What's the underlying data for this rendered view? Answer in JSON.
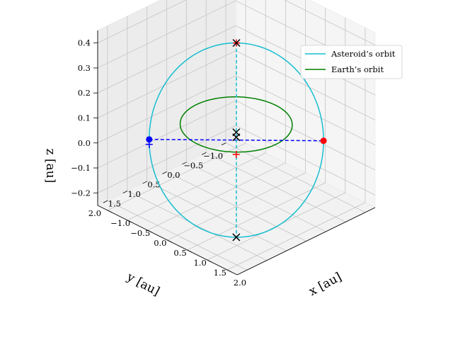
{
  "chart_data": {
    "type": "line3d",
    "xlabel": "x [au]",
    "ylabel": "y [au]",
    "zlabel": "z [au]",
    "xlim": [
      -1.25,
      2.25
    ],
    "ylim": [
      -1.25,
      2.25
    ],
    "zlim": [
      -0.25,
      0.45
    ],
    "x_ticks": [
      "−1.0",
      "−0.5",
      "0.0",
      "0.5",
      "1.0",
      "1.5",
      "2.0"
    ],
    "y_ticks": [
      "−1.0",
      "−0.5",
      "0.0",
      "0.5",
      "1.0",
      "1.5",
      "2.0"
    ],
    "z_ticks": [
      "−0.2",
      "−0.1",
      "0.0",
      "0.1",
      "0.2",
      "0.3",
      "0.4"
    ],
    "x_tick_values": [
      -1.0,
      -0.5,
      0.0,
      0.5,
      1.0,
      1.5,
      2.0
    ],
    "y_tick_values": [
      -1.0,
      -0.5,
      0.0,
      0.5,
      1.0,
      1.5,
      2.0
    ],
    "z_tick_values": [
      -0.2,
      -0.1,
      0.0,
      0.1,
      0.2,
      0.3,
      0.4
    ],
    "grid": true,
    "legend_position": "top-right",
    "series": [
      {
        "name": "Asteroid’s orbit",
        "color": "#17becf",
        "orbit": {
          "center": [
            0.4,
            0.4,
            0.0
          ],
          "axis_u": [
            1.1,
            -1.1,
            0.0
          ],
          "axis_v": [
            0.2,
            0.2,
            0.42
          ]
        }
      },
      {
        "name": "Earth’s orbit",
        "color": "#008000",
        "orbit": {
          "center": [
            0.0,
            0.0,
            0.0
          ],
          "radius": 1.0
        }
      }
    ],
    "markers": [
      {
        "type": "point",
        "color": "#0000ff",
        "position": [
          -0.7,
          1.5,
          0.0
        ]
      },
      {
        "type": "point",
        "color": "#ff0000",
        "position": [
          1.5,
          -0.7,
          0.0
        ]
      },
      {
        "type": "plus",
        "color": "#0000ff",
        "position": [
          -0.7,
          1.5,
          -0.02
        ]
      },
      {
        "type": "plus",
        "color": "#ff0000",
        "position": [
          0.6,
          0.6,
          0.42
        ]
      },
      {
        "type": "plus",
        "color": "#ff0000",
        "position": [
          0.0,
          0.0,
          -0.12
        ]
      },
      {
        "type": "cross",
        "color": "#000000",
        "position": [
          0.6,
          0.6,
          0.42
        ]
      },
      {
        "type": "cross",
        "color": "#000000",
        "position": [
          0.2,
          0.2,
          0.0
        ]
      },
      {
        "type": "cross",
        "color": "#000000",
        "position": [
          0.2,
          0.2,
          -0.02
        ]
      },
      {
        "type": "cross",
        "color": "#000000",
        "position": [
          0.2,
          0.2,
          -0.42
        ]
      }
    ],
    "dashed_lines": [
      {
        "color": "#0000ff",
        "from": [
          -0.7,
          1.5,
          0.0
        ],
        "to": [
          1.5,
          -0.7,
          0.0
        ]
      },
      {
        "color": "#17becf",
        "from": [
          0.6,
          0.6,
          0.42
        ],
        "to": [
          0.2,
          0.2,
          -0.42
        ]
      }
    ]
  }
}
